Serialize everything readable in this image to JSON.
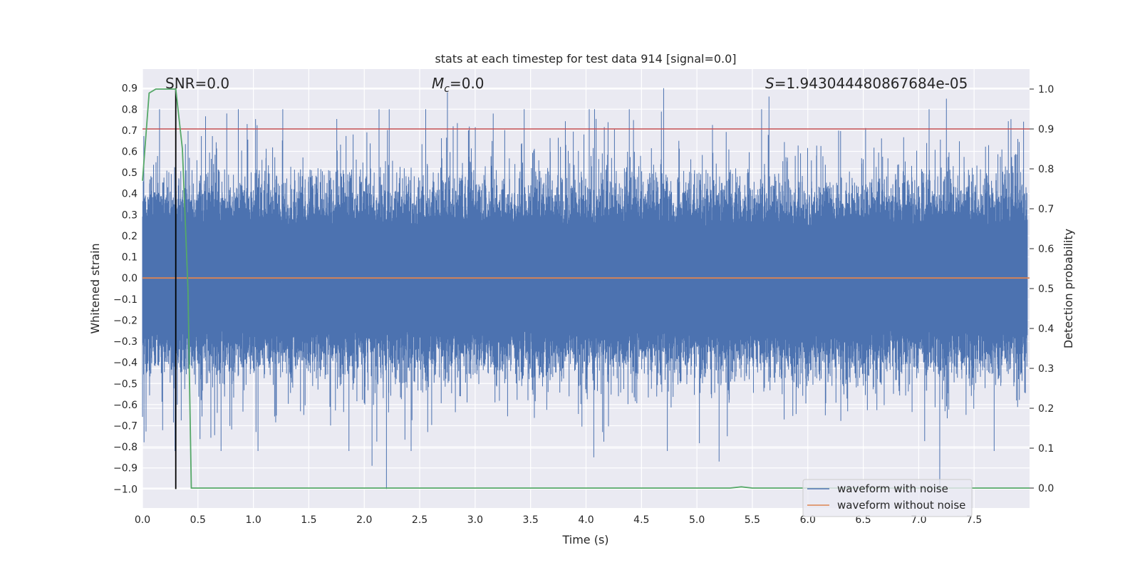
{
  "chart_data": {
    "type": "line",
    "title": "stats at each timestep for test data 914 [signal=0.0]",
    "xlabel": "Time (s)",
    "ylabel_left": "Whitened strain",
    "ylabel_right": "Detection probability",
    "xlim": [
      0.0,
      8.0
    ],
    "ylim_left": [
      -1.09,
      0.99
    ],
    "ylim_right": [
      -0.05,
      1.05
    ],
    "x_ticks": [
      "0.0",
      "0.5",
      "1.0",
      "1.5",
      "2.0",
      "2.5",
      "3.0",
      "3.5",
      "4.0",
      "4.5",
      "5.0",
      "5.5",
      "6.0",
      "6.5",
      "7.0",
      "7.5"
    ],
    "y_ticks_left": [
      "0.9",
      "0.8",
      "0.7",
      "0.6",
      "0.5",
      "0.4",
      "0.3",
      "0.2",
      "0.1",
      "0.0",
      "−0.1",
      "−0.2",
      "−0.3",
      "−0.4",
      "−0.5",
      "−0.6",
      "−0.7",
      "−0.8",
      "−0.9",
      "−1.0"
    ],
    "y_ticks_right": [
      "1.0",
      "0.9",
      "0.8",
      "0.7",
      "0.6",
      "0.5",
      "0.4",
      "0.3",
      "0.2",
      "0.1",
      "0.0"
    ],
    "grid": true,
    "legend_position": "bottom-right",
    "annotations": {
      "snr": "SNR=0.0",
      "mc_symbol": "M",
      "mc_sub": "c",
      "mc_value": "=0.0",
      "s_symbol": "S",
      "s_value": "=1.943044480867684e-05"
    },
    "series": [
      {
        "name": "waveform with noise",
        "axis": "left",
        "color": "#4c72b0",
        "description_stats": {
          "typical_range": [
            -0.45,
            0.45
          ],
          "max": 0.9,
          "min": -1.0
        },
        "notable_peaks": [
          [
            0.76,
            0.78
          ],
          [
            2.75,
            0.88
          ],
          [
            4.7,
            0.9
          ],
          [
            5.65,
            0.86
          ],
          [
            7.25,
            0.85
          ]
        ],
        "notable_dips": [
          [
            2.2,
            -1.0
          ],
          [
            2.07,
            -0.89
          ],
          [
            4.07,
            -0.85
          ],
          [
            5.2,
            -0.87
          ],
          [
            7.19,
            -1.0
          ]
        ]
      },
      {
        "name": "waveform without noise",
        "axis": "left",
        "color": "#dd8452",
        "x": [
          0.0,
          8.0
        ],
        "y": [
          0.0,
          0.0
        ]
      },
      {
        "axis": "right",
        "color": "#55a868",
        "x": [
          0.0,
          0.06,
          0.12,
          0.3,
          0.36,
          0.41,
          0.44,
          0.5,
          5.3,
          5.4,
          5.5,
          8.0
        ],
        "y": [
          0.77,
          0.99,
          1.0,
          1.0,
          0.85,
          0.5,
          0.0,
          0.0,
          0.0,
          0.003,
          0.0,
          0.0
        ]
      }
    ],
    "reference_lines": [
      {
        "orientation": "horizontal",
        "axis": "right",
        "value": 0.9,
        "color": "#c44e52"
      },
      {
        "orientation": "vertical",
        "value": 0.3,
        "y_range": [
          -1.0,
          0.9
        ],
        "color": "#000000"
      }
    ]
  }
}
